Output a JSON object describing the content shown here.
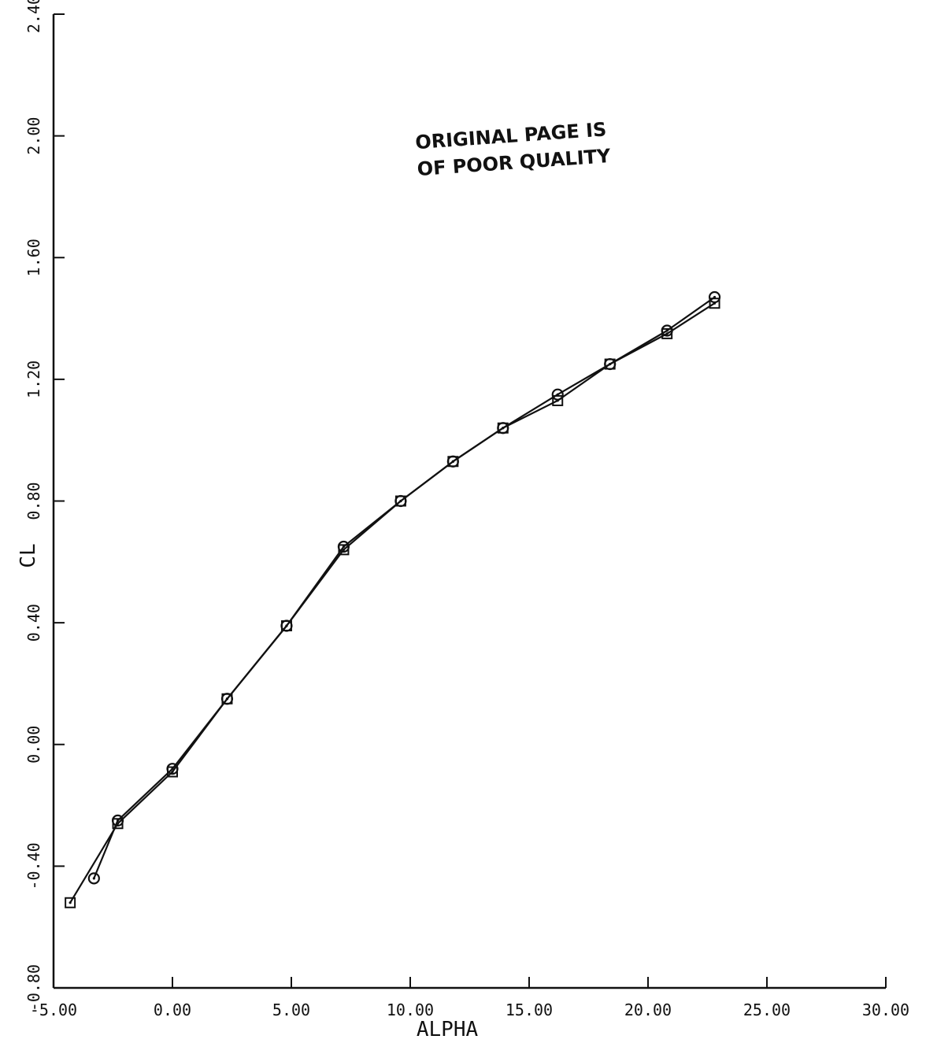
{
  "chart_data": {
    "type": "line",
    "xlabel": "ALPHA",
    "ylabel": "CL",
    "xlim": [
      -5.0,
      30.0
    ],
    "ylim": [
      -0.8,
      2.4
    ],
    "xticks": [
      "-5.00",
      "0.00",
      "5.00",
      "10.00",
      "15.00",
      "20.00",
      "25.00",
      "30.00"
    ],
    "yticks": [
      "-0.80",
      "-0.40",
      "0.00",
      "0.40",
      "0.80",
      "1.20",
      "1.60",
      "2.00",
      "2.40"
    ],
    "xtick_values": [
      -5,
      0,
      5,
      10,
      15,
      20,
      25,
      30
    ],
    "ytick_values": [
      -0.8,
      -0.4,
      0.0,
      0.4,
      0.8,
      1.2,
      1.6,
      2.0,
      2.4
    ],
    "grid": false,
    "series": [
      {
        "marker": "square",
        "x": [
          -4.3,
          -2.3,
          0.0,
          2.3,
          4.8,
          7.2,
          9.6,
          11.8,
          13.9,
          16.2,
          18.4,
          20.8,
          22.8
        ],
        "y": [
          -0.52,
          -0.26,
          -0.09,
          0.15,
          0.39,
          0.64,
          0.8,
          0.93,
          1.04,
          1.13,
          1.25,
          1.35,
          1.45
        ]
      },
      {
        "marker": "circle",
        "x": [
          -3.3,
          -2.3,
          0.0,
          2.3,
          4.8,
          7.2,
          9.6,
          11.8,
          13.9,
          16.2,
          18.4,
          20.8,
          22.8
        ],
        "y": [
          -0.44,
          -0.25,
          -0.08,
          0.15,
          0.39,
          0.65,
          0.8,
          0.93,
          1.04,
          1.15,
          1.25,
          1.36,
          1.47
        ]
      }
    ],
    "annotations": [
      "ORIGINAL PAGE IS",
      "OF POOR QUALITY"
    ]
  }
}
